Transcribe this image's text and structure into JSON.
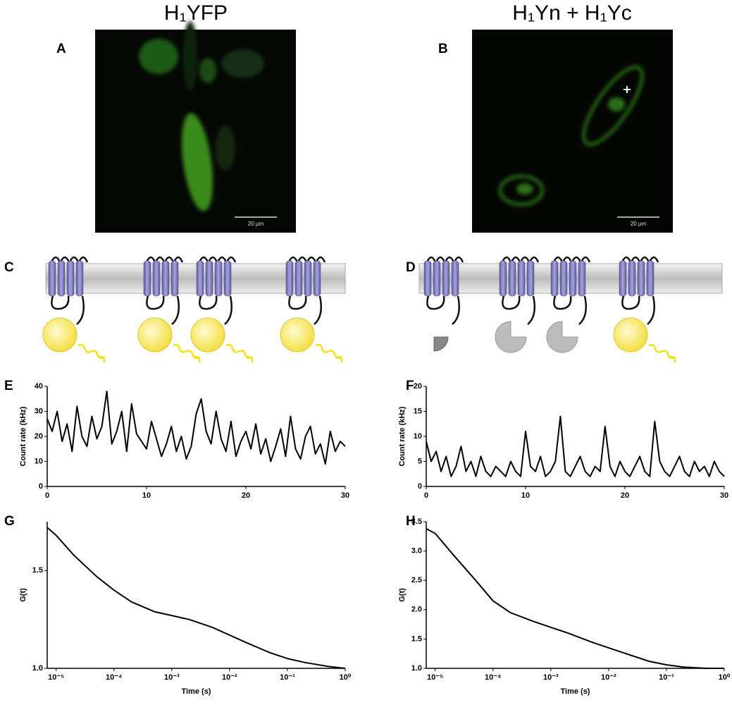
{
  "panels": {
    "A": {
      "label": "A",
      "title": "H₁YFP",
      "scale_bar": "20 µm"
    },
    "B": {
      "label": "B",
      "title": "H₁Yn + H₁Yc",
      "scale_bar": "20 µm"
    },
    "C": {
      "label": "C"
    },
    "D": {
      "label": "D"
    }
  },
  "chart_data": [
    {
      "type": "line",
      "label": "E",
      "ylabel": "Count rate (kHz)",
      "color": "#000000",
      "xlim": [
        0,
        30
      ],
      "ylim": [
        0,
        40
      ],
      "xticks": [
        0,
        10,
        20,
        30
      ],
      "yticks": [
        0,
        10,
        20,
        30,
        40
      ],
      "x": [
        0,
        0.5,
        1,
        1.5,
        2,
        2.5,
        3,
        3.5,
        4,
        4.5,
        5,
        5.5,
        6,
        6.5,
        7,
        7.5,
        8,
        8.5,
        9,
        9.5,
        10,
        10.5,
        11,
        11.5,
        12,
        12.5,
        13,
        13.5,
        14,
        14.5,
        15,
        15.5,
        16,
        16.5,
        17,
        17.5,
        18,
        18.5,
        19,
        19.5,
        20,
        20.5,
        21,
        21.5,
        22,
        22.5,
        23,
        23.5,
        24,
        24.5,
        25,
        25.5,
        26,
        26.5,
        27,
        27.5,
        28,
        28.5,
        29,
        29.5,
        30
      ],
      "values": [
        27,
        22,
        30,
        18,
        25,
        14,
        32,
        20,
        16,
        28,
        19,
        24,
        38,
        17,
        22,
        30,
        14,
        33,
        21,
        18,
        15,
        26,
        19,
        12,
        17,
        24,
        14,
        20,
        11,
        16,
        29,
        35,
        22,
        17,
        30,
        19,
        14,
        26,
        12,
        18,
        22,
        15,
        25,
        13,
        19,
        10,
        16,
        23,
        12,
        28,
        15,
        11,
        20,
        24,
        13,
        17,
        9,
        22,
        14,
        18,
        16
      ]
    },
    {
      "type": "line",
      "label": "F",
      "ylabel": "Count rate (kHz)",
      "color": "#000000",
      "xlim": [
        0,
        30
      ],
      "ylim": [
        0,
        20
      ],
      "xticks": [
        0,
        10,
        20,
        30
      ],
      "yticks": [
        0,
        5,
        10,
        15,
        20
      ],
      "x": [
        0,
        0.5,
        1,
        1.5,
        2,
        2.5,
        3,
        3.5,
        4,
        4.5,
        5,
        5.5,
        6,
        6.5,
        7,
        7.5,
        8,
        8.5,
        9,
        9.5,
        10,
        10.5,
        11,
        11.5,
        12,
        12.5,
        13,
        13.5,
        14,
        14.5,
        15,
        15.5,
        16,
        16.5,
        17,
        17.5,
        18,
        18.5,
        19,
        19.5,
        20,
        20.5,
        21,
        21.5,
        22,
        22.5,
        23,
        23.5,
        24,
        24.5,
        25,
        25.5,
        26,
        26.5,
        27,
        27.5,
        28,
        28.5,
        29,
        29.5,
        30
      ],
      "values": [
        9,
        5,
        7,
        3,
        6,
        2,
        4,
        8,
        3,
        5,
        2,
        6,
        3,
        2,
        4,
        3,
        2,
        5,
        3,
        2,
        11,
        4,
        3,
        6,
        2,
        3,
        5,
        14,
        3,
        2,
        4,
        6,
        3,
        2,
        4,
        3,
        12,
        4,
        2,
        5,
        3,
        2,
        4,
        6,
        3,
        2,
        13,
        5,
        3,
        2,
        4,
        6,
        3,
        2,
        5,
        3,
        4,
        2,
        5,
        3,
        2
      ]
    },
    {
      "type": "line",
      "label": "G",
      "ylabel": "G(t)",
      "xlabel": "Time (s)",
      "color": "#000000",
      "xscale": "log",
      "xlim": [
        7e-06,
        1
      ],
      "ylim": [
        1.0,
        1.75
      ],
      "xticks": [
        {
          "value": 1e-05,
          "label": "10⁻⁵"
        },
        {
          "value": 0.0001,
          "label": "10⁻⁴"
        },
        {
          "value": 0.001,
          "label": "10⁻³"
        },
        {
          "value": 0.01,
          "label": "10⁻²"
        },
        {
          "value": 0.1,
          "label": "10⁻¹"
        },
        {
          "value": 1,
          "label": "10⁰"
        }
      ],
      "yticks": [
        {
          "value": 1.0,
          "label": "1.0"
        },
        1.5
      ],
      "x": [
        7e-06,
        1e-05,
        2e-05,
        5e-05,
        0.0001,
        0.0002,
        0.0005,
        0.001,
        0.002,
        0.005,
        0.01,
        0.02,
        0.05,
        0.1,
        0.2,
        0.5,
        1
      ],
      "values": [
        1.72,
        1.68,
        1.58,
        1.47,
        1.4,
        1.34,
        1.29,
        1.27,
        1.25,
        1.21,
        1.17,
        1.13,
        1.08,
        1.05,
        1.03,
        1.01,
        1.0
      ]
    },
    {
      "type": "line",
      "label": "H",
      "ylabel": "G(t)",
      "xlabel": "Time (s)",
      "color": "#000000",
      "xscale": "log",
      "xlim": [
        7e-06,
        1
      ],
      "ylim": [
        1.0,
        3.5
      ],
      "xticks": [
        {
          "value": 1e-05,
          "label": "10⁻⁵"
        },
        {
          "value": 0.0001,
          "label": "10⁻⁴"
        },
        {
          "value": 0.001,
          "label": "10⁻³"
        },
        {
          "value": 0.01,
          "label": "10⁻²"
        },
        {
          "value": 0.1,
          "label": "10⁻¹"
        },
        {
          "value": 1,
          "label": "10⁰"
        }
      ],
      "yticks": [
        {
          "value": 1.0,
          "label": "1.0"
        },
        {
          "value": 1.5,
          "label": "1.5"
        },
        {
          "value": 2.0,
          "label": "2.0"
        },
        {
          "value": 2.5,
          "label": "2.5"
        },
        {
          "value": 3.0,
          "label": "3.0"
        },
        {
          "value": 3.5,
          "label": "3.5"
        }
      ],
      "x": [
        7e-06,
        1e-05,
        2e-05,
        5e-05,
        0.0001,
        0.0002,
        0.0005,
        0.001,
        0.002,
        0.005,
        0.01,
        0.02,
        0.05,
        0.1,
        0.2,
        0.5,
        1
      ],
      "values": [
        3.38,
        3.3,
        2.95,
        2.5,
        2.15,
        1.95,
        1.8,
        1.7,
        1.6,
        1.45,
        1.35,
        1.25,
        1.12,
        1.06,
        1.02,
        1.0,
        1.0
      ]
    }
  ]
}
